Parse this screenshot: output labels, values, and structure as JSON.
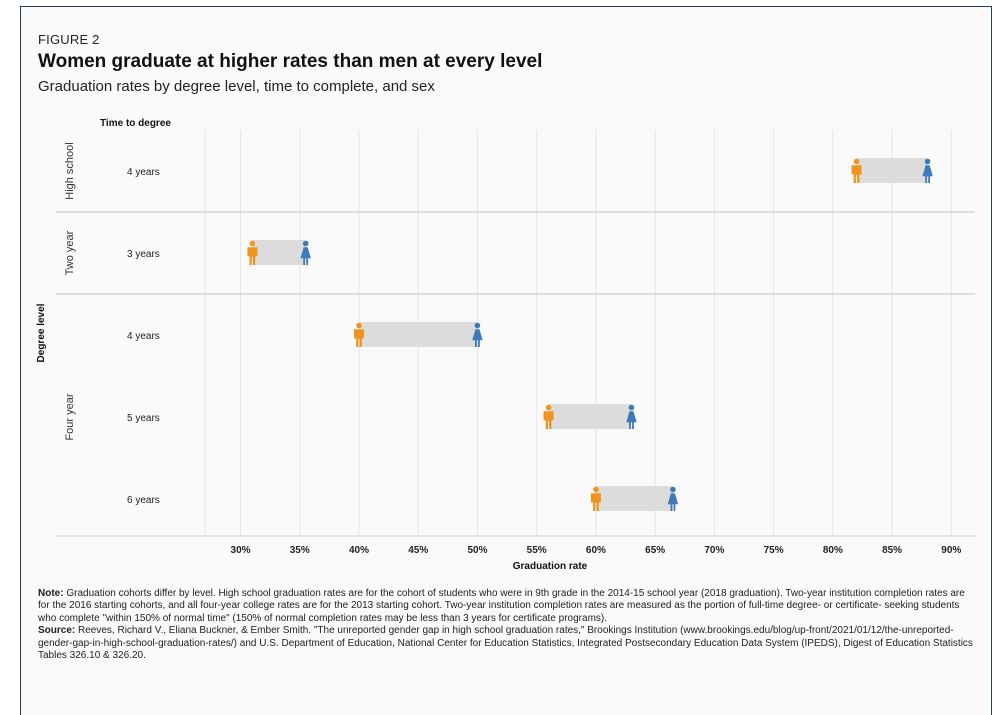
{
  "figure_label": "FIGURE 2",
  "title": "Women graduate at higher rates than men at every level",
  "subtitle": "Graduation rates by degree level, time to complete, and sex",
  "notes": {
    "note_label": "Note:",
    "note_text": "Graduation cohorts differ by level. High school graduation rates are for the cohort of students who were in 9th grade in the 2014-15 school year (2018 graduation). Two-year institution completion rates are for the 2016 starting cohorts, and all four-year college rates are for the 2013 starting cohort. Two-year institution completion rates are measured as the portion of full-time degree- or certificate- seeking students who complete \"within 150% of normal time\" (150% of normal completion rates may be less than 3 years for certificate programs).",
    "source_label": "Source:",
    "source_text": "Reeves, Richard V., Eliana Buckner, & Ember Smith. \"The unreported gender gap in high school graduation rates,\" Brookings Institution (www.brookings.edu/blog/up-front/2021/01/12/the-unreported-gender-gap-in-high-school-graduation-rates/) and U.S. Department of Education, National Center for Education Statistics, Integrated Postsecondary Education Data System (IPEDS), Digest of Education Statistics Tables 326.10 & 326.20."
  },
  "chart_data": {
    "type": "dumbbell",
    "row_header": "Time to degree",
    "ylabel": "Degree level",
    "xlabel": "Graduation rate",
    "xlim": [
      0.27,
      0.92
    ],
    "x_ticks": [
      0.3,
      0.35,
      0.4,
      0.45,
      0.5,
      0.55,
      0.6,
      0.65,
      0.7,
      0.75,
      0.8,
      0.85,
      0.9
    ],
    "x_tick_labels": [
      "30%",
      "35%",
      "40%",
      "45%",
      "50%",
      "55%",
      "60%",
      "65%",
      "70%",
      "75%",
      "80%",
      "85%",
      "90%"
    ],
    "groups": [
      {
        "name": "High school",
        "rows": [
          {
            "label": "4 years",
            "men": 0.82,
            "women": 0.88
          }
        ]
      },
      {
        "name": "Two year",
        "rows": [
          {
            "label": "3 years",
            "men": 0.31,
            "women": 0.355
          }
        ]
      },
      {
        "name": "Four year",
        "rows": [
          {
            "label": "4 years",
            "men": 0.4,
            "women": 0.5
          },
          {
            "label": "5 years",
            "men": 0.56,
            "women": 0.63
          },
          {
            "label": "6 years",
            "men": 0.6,
            "women": 0.665
          }
        ]
      }
    ],
    "colors": {
      "men": "#f0941f",
      "women": "#3d7ab7",
      "gap_bar": "#dcdcdc",
      "grid": "#e6e6e6",
      "divider": "#cfcfcf"
    }
  }
}
